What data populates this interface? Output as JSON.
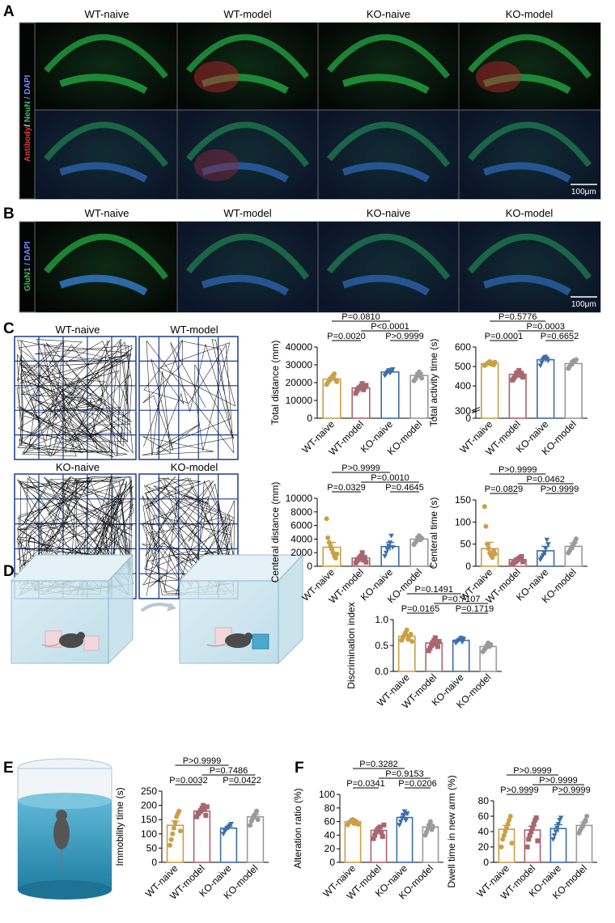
{
  "panel_letters": [
    "A",
    "B",
    "C",
    "D",
    "E",
    "F"
  ],
  "groups": [
    "WT-naive",
    "WT-model",
    "KO-naive",
    "KO-model"
  ],
  "colors": {
    "WT-naive": "#c9a046",
    "WT-model": "#a8666e",
    "KO-naive": "#3d6ea8",
    "KO-model": "#9a9a9a"
  },
  "panelA": {
    "stain_parts": [
      "Antibody",
      "/ ",
      "NeuN",
      " / DAPI"
    ],
    "scale_bar": "100μm"
  },
  "panelB": {
    "stain_parts": [
      "GluN1",
      " / DAPI"
    ],
    "scale_bar": "100μm"
  },
  "panelC": {
    "track_titles": [
      "WT-naive",
      "WT-model",
      "KO-naive",
      "KO-model"
    ]
  },
  "chart_data": [
    {
      "id": "total_distance",
      "type": "bar",
      "ylabel": "Total distance (mm)",
      "ylim": [
        0,
        40000
      ],
      "yticks": [
        "0",
        "10000",
        "20000",
        "30000",
        "40000"
      ],
      "categories": [
        "WT-naive",
        "WT-model",
        "KO-naive",
        "KO-model"
      ],
      "values": [
        22000,
        17000,
        26000,
        24000
      ],
      "errors": [
        1000,
        1200,
        800,
        1500
      ],
      "points": [
        [
          19000,
          20000,
          21000,
          22000,
          23000,
          24000,
          25000,
          21500,
          20500
        ],
        [
          14000,
          15500,
          16500,
          17000,
          18000,
          19500,
          16000,
          17500,
          18500
        ],
        [
          24000,
          25000,
          26000,
          27000,
          25500,
          26500,
          27500
        ],
        [
          21000,
          22000,
          23500,
          25000,
          26000,
          24500,
          22500
        ]
      ],
      "pvalues": [
        {
          "pair": [
            0,
            2
          ],
          "label": "P=0.0810"
        },
        {
          "pair": [
            1,
            3
          ],
          "label": "P<0.0001"
        },
        {
          "pair": [
            0,
            1
          ],
          "label": "P=0.0020"
        },
        {
          "pair": [
            2,
            3
          ],
          "label": "P>0.9999"
        }
      ]
    },
    {
      "id": "total_activity_time",
      "type": "bar",
      "ylabel": "Total activity time (s)",
      "ylim": [
        0,
        600
      ],
      "yticks": [
        "0",
        "300",
        "400",
        "500",
        "600"
      ],
      "axis_break": true,
      "categories": [
        "WT-naive",
        "WT-model",
        "KO-naive",
        "KO-model"
      ],
      "values": [
        515,
        460,
        535,
        515
      ],
      "errors": [
        8,
        14,
        12,
        14
      ],
      "points": [
        [
          505,
          510,
          515,
          520,
          525,
          512,
          518,
          508,
          522
        ],
        [
          430,
          440,
          450,
          460,
          470,
          480,
          455,
          465,
          445
        ],
        [
          505,
          520,
          535,
          545,
          550,
          540,
          530
        ],
        [
          490,
          500,
          510,
          520,
          530,
          525,
          535
        ]
      ],
      "pvalues": [
        {
          "pair": [
            0,
            2
          ],
          "label": "P=0.5776"
        },
        {
          "pair": [
            1,
            3
          ],
          "label": "P=0.0003"
        },
        {
          "pair": [
            0,
            1
          ],
          "label": "P=0.0001"
        },
        {
          "pair": [
            2,
            3
          ],
          "label": "P=0.6652"
        }
      ]
    },
    {
      "id": "central_distance",
      "type": "bar",
      "ylabel": "Centeral distance (mm)",
      "ylim": [
        0,
        10000
      ],
      "yticks": [
        "0",
        "2000",
        "4000",
        "6000",
        "8000",
        "10000"
      ],
      "categories": [
        "WT-naive",
        "WT-model",
        "KO-naive",
        "KO-model"
      ],
      "values": [
        2800,
        1200,
        2900,
        4000
      ],
      "errors": [
        700,
        350,
        600,
        400
      ],
      "points": [
        [
          7000,
          4200,
          3500,
          2900,
          2500,
          2000,
          1500,
          1200,
          1800
        ],
        [
          500,
          800,
          1000,
          1200,
          1500,
          2000,
          900,
          1300,
          600
        ],
        [
          1500,
          2000,
          2500,
          3000,
          3500,
          4500,
          2800
        ],
        [
          3200,
          3500,
          3800,
          4200,
          4500,
          3900,
          4100
        ]
      ],
      "pvalues": [
        {
          "pair": [
            0,
            2
          ],
          "label": "P>0.9999"
        },
        {
          "pair": [
            1,
            3
          ],
          "label": "P=0.0010"
        },
        {
          "pair": [
            0,
            1
          ],
          "label": "P=0.0329"
        },
        {
          "pair": [
            2,
            3
          ],
          "label": "P=0.4645"
        }
      ]
    },
    {
      "id": "central_time",
      "type": "bar",
      "ylabel": "Centeral time (s)",
      "ylim": [
        0,
        150
      ],
      "yticks": [
        "0",
        "50",
        "100",
        "150"
      ],
      "categories": [
        "WT-naive",
        "WT-model",
        "KO-naive",
        "KO-model"
      ],
      "values": [
        40,
        15,
        35,
        45
      ],
      "errors": [
        14,
        4,
        10,
        8
      ],
      "points": [
        [
          135,
          90,
          50,
          40,
          30,
          25,
          20,
          35,
          28
        ],
        [
          5,
          8,
          10,
          12,
          15,
          18,
          20,
          22,
          10
        ],
        [
          15,
          20,
          25,
          30,
          40,
          60,
          50
        ],
        [
          30,
          35,
          40,
          45,
          50,
          55,
          62
        ]
      ],
      "pvalues": [
        {
          "pair": [
            0,
            2
          ],
          "label": "P>0.9999"
        },
        {
          "pair": [
            1,
            3
          ],
          "label": "P=0.0462"
        },
        {
          "pair": [
            0,
            1
          ],
          "label": "P=0.0829"
        },
        {
          "pair": [
            2,
            3
          ],
          "label": "P>0.9999"
        }
      ]
    },
    {
      "id": "discrimination_index",
      "type": "bar",
      "ylabel": "Discrimination index",
      "ylim": [
        0,
        1.0
      ],
      "yticks": [
        "0.0",
        "0.5",
        "1.0"
      ],
      "categories": [
        "WT-naive",
        "WT-model",
        "KO-naive",
        "KO-model"
      ],
      "values": [
        0.68,
        0.55,
        0.6,
        0.48
      ],
      "errors": [
        0.03,
        0.04,
        0.02,
        0.03
      ],
      "points": [
        [
          0.6,
          0.65,
          0.7,
          0.75,
          0.8,
          0.62,
          0.68,
          0.72,
          0.58
        ],
        [
          0.4,
          0.45,
          0.5,
          0.55,
          0.6,
          0.65,
          0.52,
          0.48,
          0.58
        ],
        [
          0.55,
          0.58,
          0.6,
          0.62,
          0.65,
          0.57,
          0.63
        ],
        [
          0.38,
          0.42,
          0.45,
          0.5,
          0.55,
          0.48,
          0.52
        ]
      ],
      "pvalues": [
        {
          "pair": [
            0,
            2
          ],
          "label": "P=0.1491"
        },
        {
          "pair": [
            1,
            3
          ],
          "label": "P=0.7107"
        },
        {
          "pair": [
            0,
            1
          ],
          "label": "P=0.0165"
        },
        {
          "pair": [
            2,
            3
          ],
          "label": "P=0.1719"
        }
      ]
    },
    {
      "id": "immobility_time",
      "type": "bar",
      "ylabel": "Immobility time (s)",
      "ylim": [
        0,
        250
      ],
      "yticks": [
        "0",
        "50",
        "100",
        "150",
        "200",
        "250"
      ],
      "categories": [
        "WT-naive",
        "WT-model",
        "KO-naive",
        "KO-model"
      ],
      "values": [
        130,
        180,
        120,
        160
      ],
      "errors": [
        15,
        8,
        6,
        8
      ],
      "points": [
        [
          60,
          80,
          100,
          120,
          140,
          160,
          170,
          180,
          110
        ],
        [
          160,
          170,
          175,
          180,
          190,
          200,
          185,
          165,
          195
        ],
        [
          100,
          110,
          115,
          120,
          125,
          130,
          135
        ],
        [
          130,
          145,
          155,
          160,
          170,
          180,
          150
        ]
      ],
      "pvalues": [
        {
          "pair": [
            0,
            2
          ],
          "label": "P>0.9999"
        },
        {
          "pair": [
            1,
            3
          ],
          "label": "P=0.7486"
        },
        {
          "pair": [
            0,
            1
          ],
          "label": "P=0.0032"
        },
        {
          "pair": [
            2,
            3
          ],
          "label": "P=0.0422"
        }
      ]
    },
    {
      "id": "alteration_ratio",
      "type": "bar",
      "ylabel": "Alteration ratio (%)",
      "ylim": [
        0,
        100
      ],
      "yticks": [
        "0",
        "20",
        "40",
        "60",
        "80",
        "100"
      ],
      "categories": [
        "WT-naive",
        "WT-model",
        "KO-naive",
        "KO-model"
      ],
      "values": [
        60,
        47,
        66,
        52
      ],
      "errors": [
        2,
        3,
        4,
        4
      ],
      "points": [
        [
          55,
          58,
          60,
          62,
          63,
          57,
          61,
          59,
          56
        ],
        [
          35,
          40,
          45,
          48,
          50,
          52,
          44,
          38,
          55
        ],
        [
          55,
          60,
          65,
          70,
          75,
          62,
          72
        ],
        [
          40,
          45,
          50,
          55,
          60,
          48,
          52
        ]
      ],
      "pvalues": [
        {
          "pair": [
            0,
            2
          ],
          "label": "P=0.3282"
        },
        {
          "pair": [
            1,
            3
          ],
          "label": "P=0.9153"
        },
        {
          "pair": [
            0,
            1
          ],
          "label": "P=0.0341"
        },
        {
          "pair": [
            2,
            3
          ],
          "label": "P=0.0206"
        }
      ]
    },
    {
      "id": "dwell_time",
      "type": "bar",
      "ylabel": "Dwell time in new arm (%)",
      "ylim": [
        0,
        80
      ],
      "yticks": [
        "0",
        "20",
        "40",
        "60",
        "80"
      ],
      "categories": [
        "WT-naive",
        "WT-model",
        "KO-naive",
        "KO-model"
      ],
      "values": [
        43,
        42,
        44,
        48
      ],
      "errors": [
        5,
        5,
        5,
        4
      ],
      "points": [
        [
          20,
          30,
          35,
          40,
          45,
          50,
          55,
          60,
          25
        ],
        [
          20,
          30,
          35,
          40,
          45,
          50,
          55,
          58,
          28
        ],
        [
          30,
          35,
          40,
          45,
          50,
          55,
          58
        ],
        [
          38,
          42,
          45,
          48,
          52,
          55,
          60
        ]
      ],
      "pvalues": [
        {
          "pair": [
            0,
            2
          ],
          "label": "P>0.9999"
        },
        {
          "pair": [
            1,
            3
          ],
          "label": "P>0.9999"
        },
        {
          "pair": [
            0,
            1
          ],
          "label": "P>0.9999"
        },
        {
          "pair": [
            2,
            3
          ],
          "label": "P>0.9999"
        }
      ]
    }
  ]
}
